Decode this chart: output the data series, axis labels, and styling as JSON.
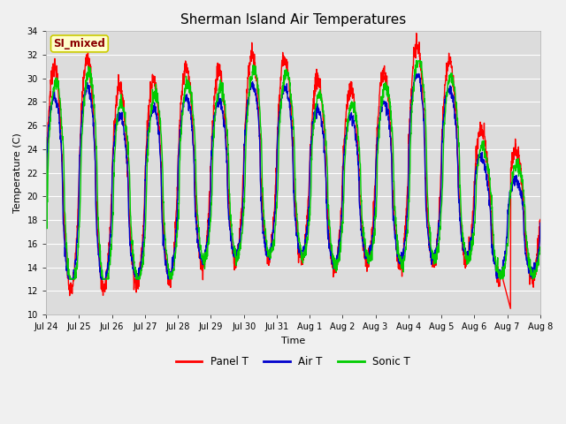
{
  "title": "Sherman Island Air Temperatures",
  "xlabel": "Time",
  "ylabel": "Temperature (C)",
  "ylim": [
    10,
    34
  ],
  "yticks": [
    10,
    12,
    14,
    16,
    18,
    20,
    22,
    24,
    26,
    28,
    30,
    32,
    34
  ],
  "x_labels": [
    "Jul 24",
    "Jul 25",
    "Jul 26",
    "Jul 27",
    "Jul 28",
    "Jul 29",
    "Jul 30",
    "Jul 31",
    "Aug 1",
    "Aug 2",
    "Aug 3",
    "Aug 4",
    "Aug 5",
    "Aug 6",
    "Aug 7",
    "Aug 8"
  ],
  "annotation_text": "SI_mixed",
  "annotation_color": "#8B0000",
  "annotation_bg": "#FFFFCC",
  "annotation_edge": "#CCCC00",
  "fig_bg": "#F0F0F0",
  "plot_bg": "#DCDCDC",
  "panel_color": "#FF0000",
  "air_color": "#0000CC",
  "sonic_color": "#00CC00",
  "line_width": 1.0,
  "legend_entries": [
    "Panel T",
    "Air T",
    "Sonic T"
  ],
  "n_days": 15,
  "ppd": 144,
  "title_fontsize": 11,
  "label_fontsize": 8,
  "tick_fontsize": 7
}
